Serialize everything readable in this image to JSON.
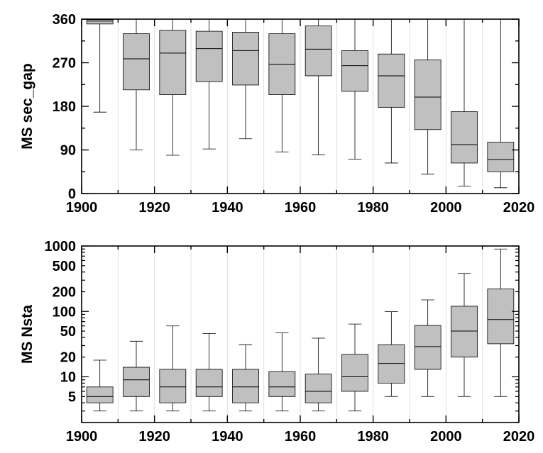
{
  "chart_data": [
    {
      "type": "box",
      "ylabel": "MS sec_gap",
      "xlim": [
        1900,
        2020
      ],
      "ylim": [
        0,
        360
      ],
      "x_ticks": [
        "1900",
        "1920",
        "1940",
        "1960",
        "1980",
        "2000",
        "2020"
      ],
      "y_ticks": [
        "0",
        "90",
        "180",
        "270",
        "360"
      ],
      "decade_grid": true,
      "box_color": "#c0c0c0",
      "boxes": [
        {
          "decade": 1900,
          "min": 168,
          "q1": 350,
          "median": 356,
          "q3": 359,
          "max": 360
        },
        {
          "decade": 1910,
          "min": 90,
          "q1": 214,
          "median": 278,
          "q3": 330,
          "max": 360
        },
        {
          "decade": 1920,
          "min": 79,
          "q1": 204,
          "median": 290,
          "q3": 337,
          "max": 360
        },
        {
          "decade": 1930,
          "min": 92,
          "q1": 231,
          "median": 299,
          "q3": 335,
          "max": 360
        },
        {
          "decade": 1940,
          "min": 113,
          "q1": 224,
          "median": 295,
          "q3": 333,
          "max": 360
        },
        {
          "decade": 1950,
          "min": 86,
          "q1": 204,
          "median": 267,
          "q3": 330,
          "max": 360
        },
        {
          "decade": 1960,
          "min": 80,
          "q1": 243,
          "median": 298,
          "q3": 346,
          "max": 360
        },
        {
          "decade": 1970,
          "min": 71,
          "q1": 211,
          "median": 264,
          "q3": 295,
          "max": 360
        },
        {
          "decade": 1980,
          "min": 63,
          "q1": 178,
          "median": 243,
          "q3": 288,
          "max": 360
        },
        {
          "decade": 1990,
          "min": 40,
          "q1": 132,
          "median": 199,
          "q3": 276,
          "max": 360
        },
        {
          "decade": 2000,
          "min": 15,
          "q1": 63,
          "median": 101,
          "q3": 169,
          "max": 360
        },
        {
          "decade": 2010,
          "min": 12,
          "q1": 45,
          "median": 70,
          "q3": 106,
          "max": 360
        }
      ]
    },
    {
      "type": "box",
      "ylabel": "MS Nsta",
      "xlim": [
        1900,
        2020
      ],
      "ylim": [
        2,
        1000
      ],
      "yscale": "log",
      "x_ticks": [
        "1900",
        "1920",
        "1940",
        "1960",
        "1980",
        "2000",
        "2020"
      ],
      "y_ticks": [
        "5",
        "10",
        "20",
        "50",
        "100",
        "200",
        "500",
        "1000"
      ],
      "decade_grid": true,
      "box_color": "#c0c0c0",
      "boxes": [
        {
          "decade": 1900,
          "min": 3,
          "q1": 4,
          "median": 5,
          "q3": 7,
          "max": 18
        },
        {
          "decade": 1910,
          "min": 3,
          "q1": 5,
          "median": 9,
          "q3": 14,
          "max": 35
        },
        {
          "decade": 1920,
          "min": 3,
          "q1": 4,
          "median": 7,
          "q3": 13,
          "max": 60
        },
        {
          "decade": 1930,
          "min": 3,
          "q1": 5,
          "median": 7,
          "q3": 13,
          "max": 46
        },
        {
          "decade": 1940,
          "min": 3,
          "q1": 4,
          "median": 7,
          "q3": 13,
          "max": 31
        },
        {
          "decade": 1950,
          "min": 3,
          "q1": 5,
          "median": 7,
          "q3": 12,
          "max": 47
        },
        {
          "decade": 1960,
          "min": 3,
          "q1": 4,
          "median": 6,
          "q3": 11,
          "max": 39
        },
        {
          "decade": 1970,
          "min": 3,
          "q1": 6,
          "median": 10,
          "q3": 22,
          "max": 64
        },
        {
          "decade": 1980,
          "min": 5,
          "q1": 8,
          "median": 16,
          "q3": 31,
          "max": 99
        },
        {
          "decade": 1990,
          "min": 5,
          "q1": 13,
          "median": 29,
          "q3": 61,
          "max": 150
        },
        {
          "decade": 2000,
          "min": 5,
          "q1": 20,
          "median": 50,
          "q3": 120,
          "max": 380
        },
        {
          "decade": 2010,
          "min": 5,
          "q1": 32,
          "median": 75,
          "q3": 220,
          "max": 900
        }
      ]
    }
  ]
}
